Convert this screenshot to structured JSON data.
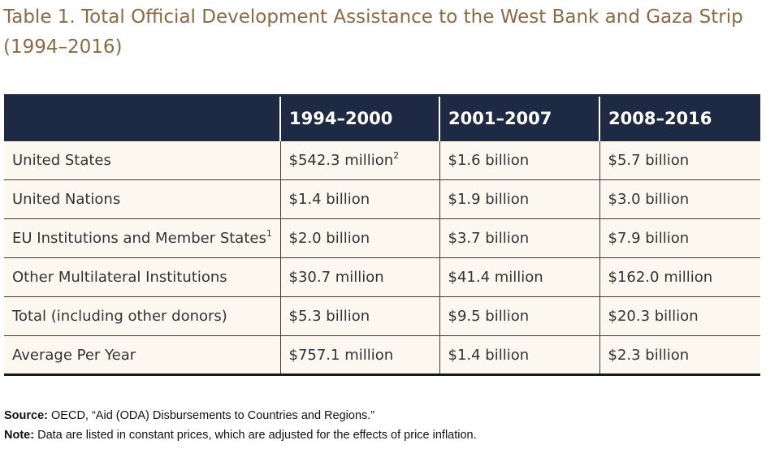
{
  "title": "Table 1. Total Official Development Assistance to the West Bank and Gaza Strip (1994–2016)",
  "table": {
    "headers": [
      "",
      "1994–2000",
      "2001–2007",
      "2008–2016"
    ],
    "rows": [
      {
        "label": "United States",
        "label_sup": "",
        "v1": "$542.3 million",
        "v1_sup": "2",
        "v2": "$1.6 billion",
        "v3": "$5.7 billion"
      },
      {
        "label": "United Nations",
        "label_sup": "",
        "v1": "$1.4 billion",
        "v1_sup": "",
        "v2": "$1.9 billion",
        "v3": "$3.0 billion"
      },
      {
        "label": "EU Institutions and Member States",
        "label_sup": "1",
        "v1": "$2.0 billion",
        "v1_sup": "",
        "v2": "$3.7 billion",
        "v3": "$7.9 billion"
      },
      {
        "label": "Other Multilateral Institutions",
        "label_sup": "",
        "v1": "$30.7 million",
        "v1_sup": "",
        "v2": "$41.4 million",
        "v3": "$162.0 million"
      },
      {
        "label": "Total (including other donors)",
        "label_sup": "",
        "v1": "$5.3 billion",
        "v1_sup": "",
        "v2": "$9.5 billion",
        "v3": "$20.3 billion"
      },
      {
        "label": "Average Per Year",
        "label_sup": "",
        "v1": "$757.1 million",
        "v1_sup": "",
        "v2": "$1.4 billion",
        "v3": "$2.3 billion"
      }
    ]
  },
  "source": {
    "label": "Source:",
    "text": " OECD, “Aid (ODA) Disbursements to Countries and Regions.”"
  },
  "note": {
    "label": "Note:",
    "text": " Data are listed in constant prices, which are adjusted for the effects of price inflation."
  },
  "colors": {
    "title": "#8b6a45",
    "header_bg": "#1e2a44",
    "table_bg": "#fcf8ef"
  }
}
